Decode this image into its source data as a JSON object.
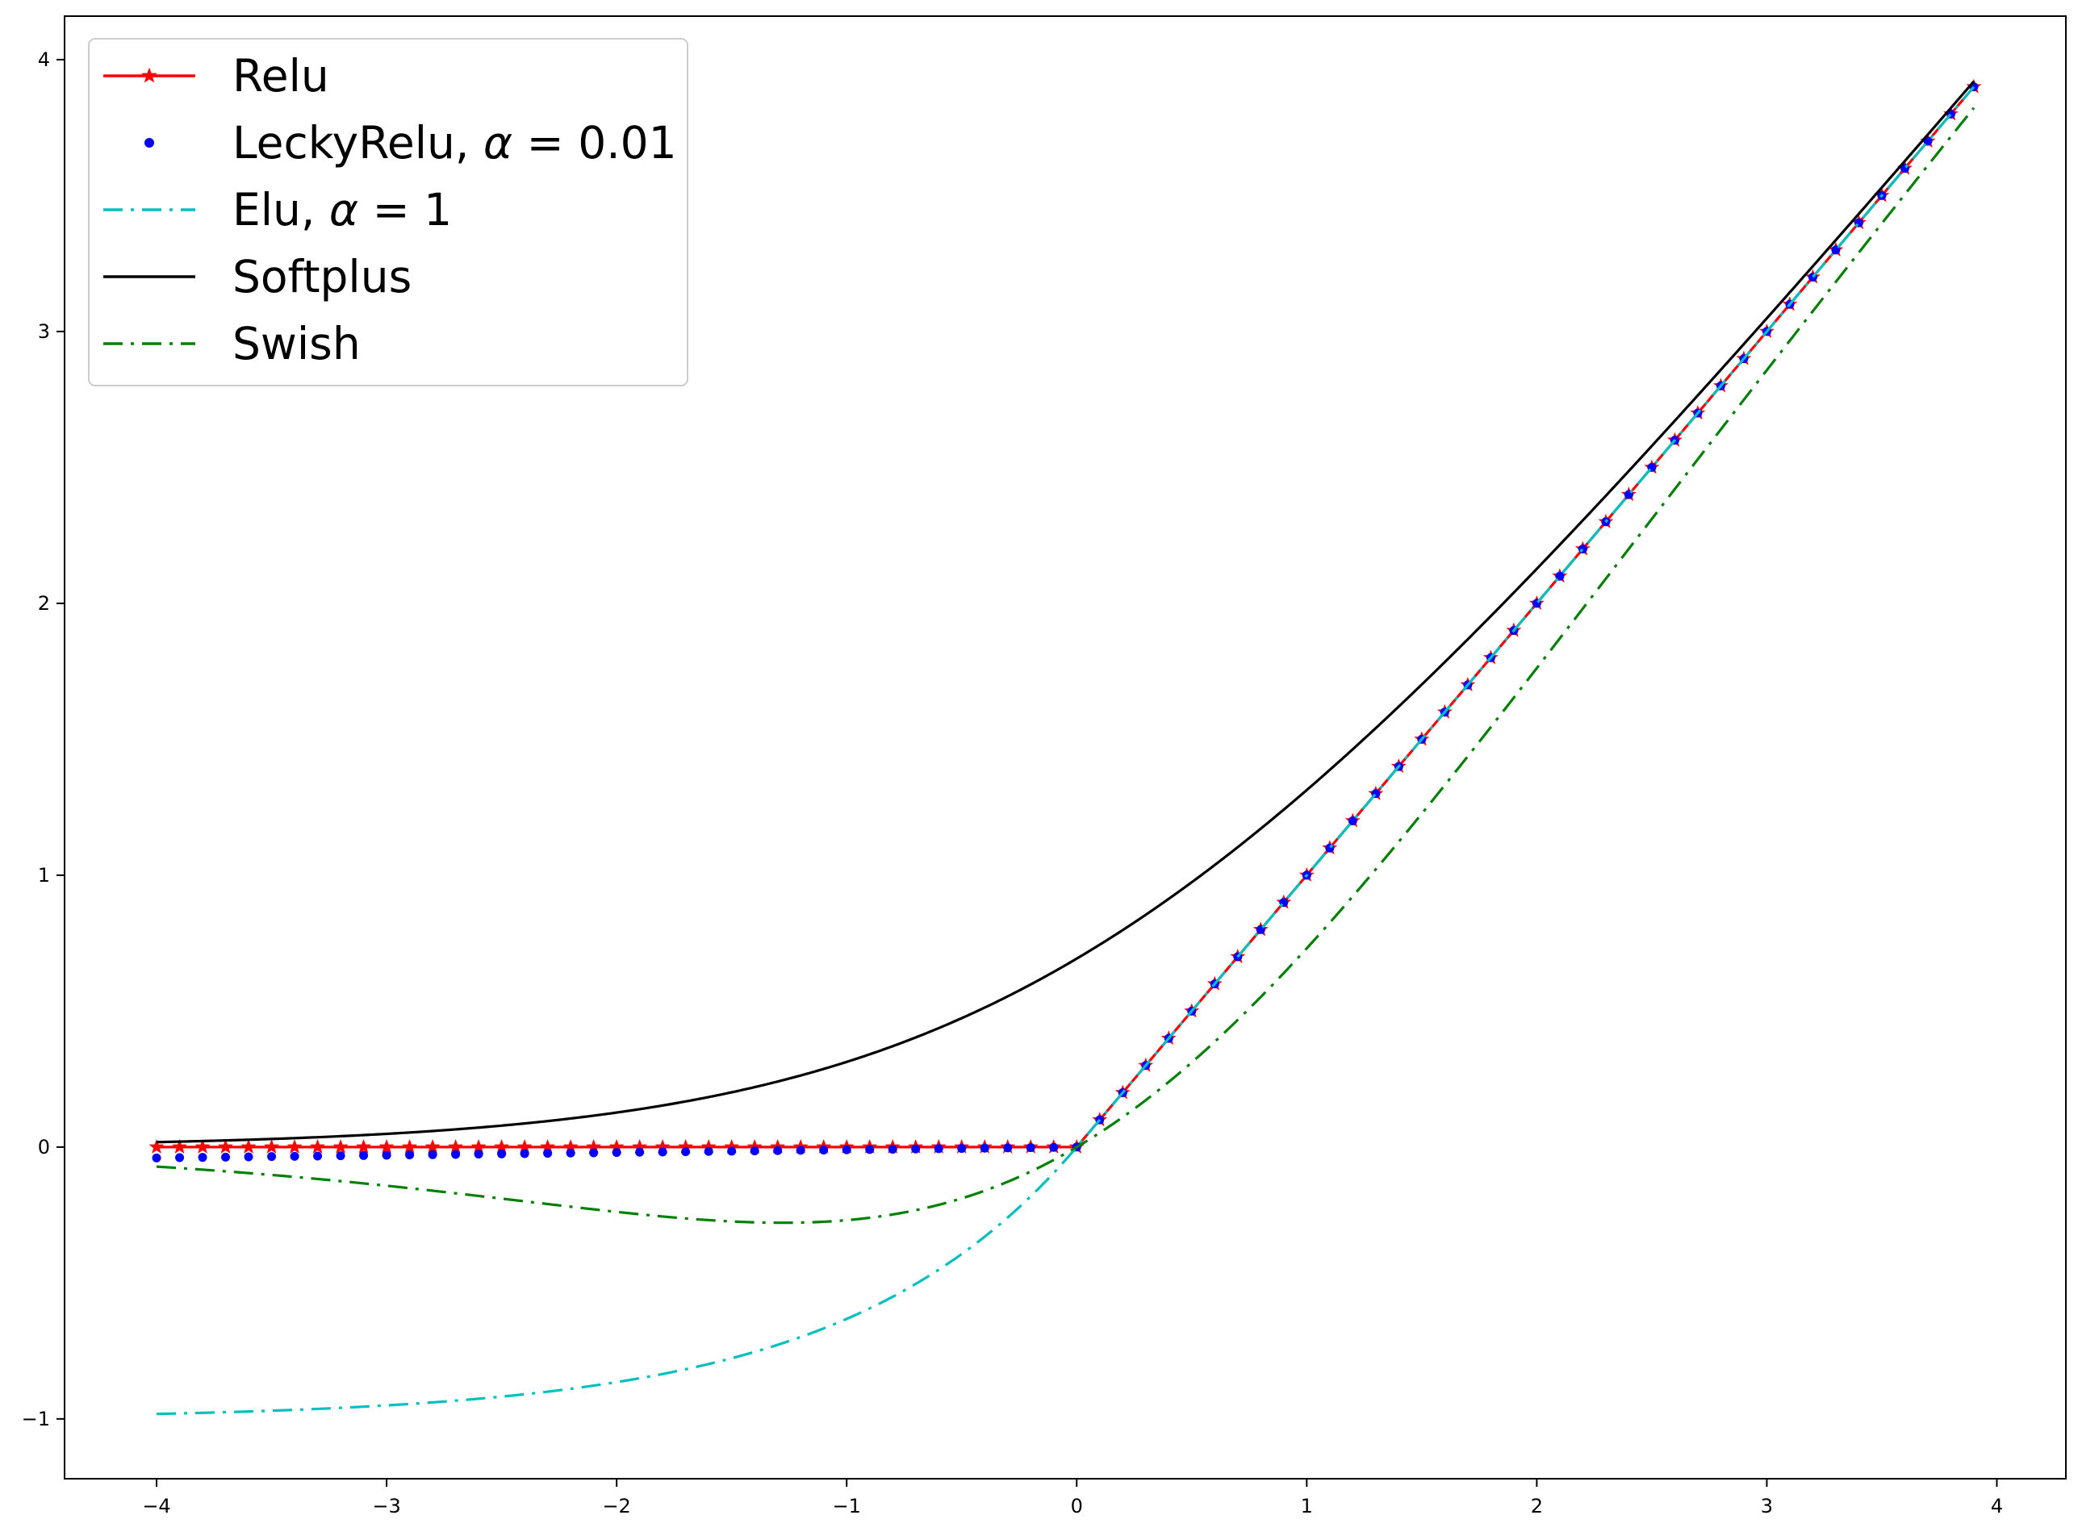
{
  "chart_data": {
    "type": "line",
    "title": "",
    "xlabel": "",
    "ylabel": "",
    "xlim": [
      -4.4,
      4.3
    ],
    "ylim": [
      -1.22,
      4.16
    ],
    "x_ticks": [
      -4,
      -3,
      -2,
      -1,
      0,
      1,
      2,
      3,
      4
    ],
    "y_ticks": [
      -1,
      0,
      1,
      2,
      3,
      4
    ],
    "x_tick_labels": [
      "−4",
      "−3",
      "−2",
      "−1",
      "0",
      "1",
      "2",
      "3",
      "4"
    ],
    "y_tick_labels": [
      "−1",
      "0",
      "1",
      "2",
      "3",
      "4"
    ],
    "x_range": {
      "start": -4.0,
      "stop": 3.9,
      "step": 0.1
    },
    "grid": false,
    "legend_position": "top-left",
    "series": [
      {
        "key": "relu",
        "name": "Relu",
        "formula": "relu",
        "color": "#ff0000",
        "line_style": "solid",
        "marker": "star"
      },
      {
        "key": "leaky",
        "name": "LeckyRelu, α = 0.01",
        "name_prefix": "LeckyRelu, ",
        "name_alpha": "α",
        "name_eq": " = 0.01",
        "formula": "leaky_relu",
        "alpha": 0.01,
        "color": "#0000ff",
        "line_style": "none",
        "marker": "dot"
      },
      {
        "key": "elu",
        "name": "Elu,  α = 1",
        "name_prefix": "Elu,  ",
        "name_alpha": "α",
        "name_eq": " = 1",
        "formula": "elu",
        "alpha": 1,
        "color": "#00bfbf",
        "line_style": "dashdot"
      },
      {
        "key": "softplus",
        "name": "Softplus",
        "formula": "softplus",
        "color": "#000000",
        "line_style": "solid"
      },
      {
        "key": "swish",
        "name": "Swish",
        "formula": "swish",
        "color": "#008000",
        "line_style": "dashdot"
      }
    ]
  }
}
